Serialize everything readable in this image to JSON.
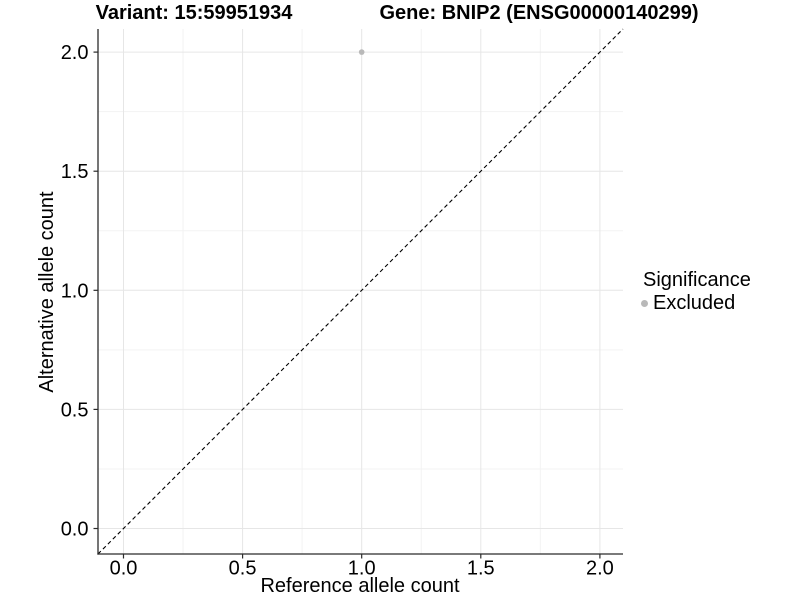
{
  "title": {
    "variant": "Variant: 15:59951934",
    "gene": "Gene: BNIP2 (ENSG00000140299)"
  },
  "chart_data": {
    "type": "scatter",
    "xlabel": "Reference allele count",
    "ylabel": "Alternative allele count",
    "xlim": [
      -0.107,
      2.097
    ],
    "ylim": [
      -0.107,
      2.097
    ],
    "xticks": {
      "values": [
        0,
        0.5,
        1,
        1.5,
        2
      ],
      "labels": [
        "0.0",
        "0.5",
        "1.0",
        "1.5",
        "2.0"
      ]
    },
    "yticks": {
      "values": [
        0,
        0.5,
        1,
        1.5,
        2
      ],
      "labels": [
        "0.0",
        "0.5",
        "1.0",
        "1.5",
        "2.0"
      ]
    },
    "minor_ticks": [
      0.25,
      0.75,
      1.25,
      1.75
    ],
    "grid": true,
    "points": [
      {
        "x": 1.0,
        "y": 2.0,
        "series": "Excluded"
      }
    ],
    "identity_line": {
      "style": "dashed",
      "equation": "y = x",
      "from": -0.107,
      "to": 2.097
    },
    "legend": {
      "position": "right",
      "title": "Significance",
      "entries": [
        {
          "label": "Excluded",
          "color": "#b9b9b9"
        }
      ]
    },
    "colors": {
      "point": "#b9b9b9",
      "major_grid": "#e6e6e6",
      "minor_grid": "#f3f3f3",
      "axis": "#2b2b2b",
      "dashed_line": "#000000",
      "text": "#000000"
    }
  }
}
